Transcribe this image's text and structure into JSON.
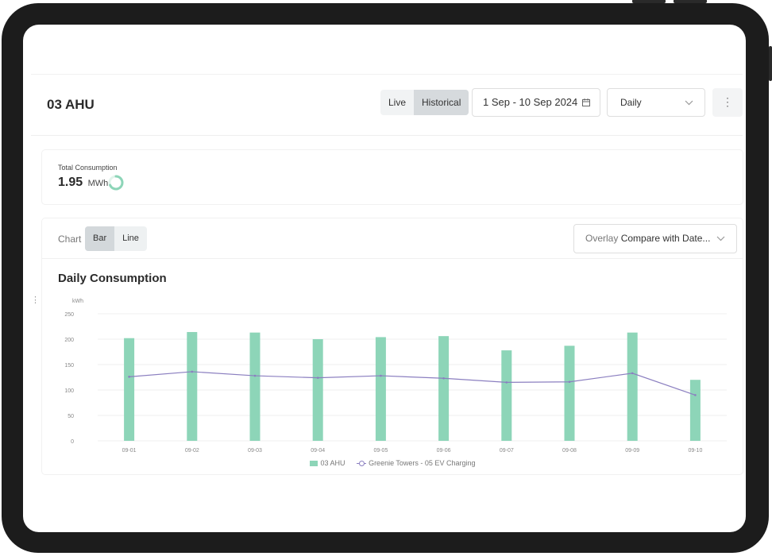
{
  "page": {
    "title": "03 AHU"
  },
  "mode_toggle": {
    "options": [
      "Live",
      "Historical"
    ],
    "selected": "Historical"
  },
  "date_range": {
    "value": "1 Sep - 10 Sep 2024",
    "icon": "calendar-icon"
  },
  "interval": {
    "value": "Daily",
    "icon": "chevron-down-icon"
  },
  "more_menu": {
    "icon": "more-vertical-icon",
    "glyph": "⋮"
  },
  "total": {
    "label": "Total Consumption",
    "value": "1.95",
    "unit": "MWh"
  },
  "chart_toolbar": {
    "label": "Chart",
    "types": [
      "Bar",
      "Line"
    ],
    "selected": "Bar",
    "overlay": {
      "key": "Overlay",
      "value": "Compare with Date..."
    }
  },
  "colors": {
    "bar": "#8dd5b8",
    "line": "#8b7fc0",
    "ring": "#8dd5b8"
  },
  "chart_data": {
    "type": "bar",
    "title": "Daily Consumption",
    "ylabel": "kWh",
    "xlabel": "",
    "ylim": [
      0,
      250
    ],
    "yticks": [
      0,
      50,
      100,
      150,
      200,
      250
    ],
    "grid": true,
    "legend": "bottom-center",
    "categories": [
      "09-01",
      "09-02",
      "09-03",
      "09-04",
      "09-05",
      "09-06",
      "09-07",
      "09-08",
      "09-09",
      "09-10"
    ],
    "series": [
      {
        "name": "03 AHU",
        "type": "bar",
        "values": [
          202,
          214,
          213,
          200,
          204,
          206,
          178,
          187,
          213,
          120
        ]
      },
      {
        "name": "Greenie Towers - 05 EV Charging",
        "type": "line",
        "values": [
          126,
          136,
          128,
          124,
          128,
          123,
          115,
          116,
          133,
          90
        ]
      }
    ]
  }
}
